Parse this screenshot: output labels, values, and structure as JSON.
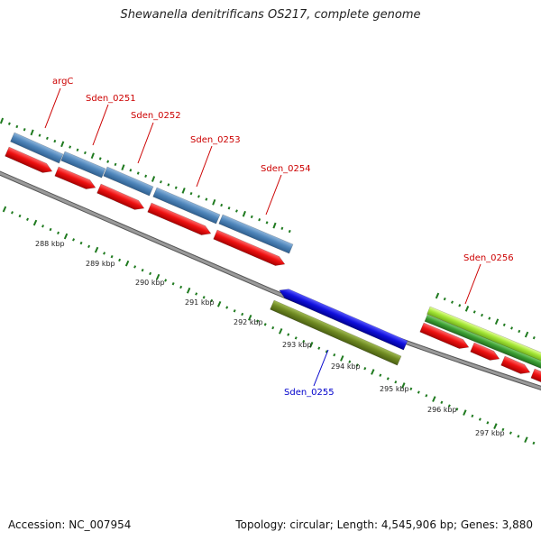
{
  "title": "Shewanella denitrificans OS217, complete genome",
  "footer": {
    "accession": "Accession: NC_007954",
    "stats": "Topology: circular; Length: 4,545,906 bp; Genes: 3,880"
  },
  "colors": {
    "backbone": "#8a8a8a",
    "gc_ticks": "#1f7a1f",
    "blue_gene": "#4f86bb",
    "red_gene": "#ee1111",
    "navy_gene": "#1010dd",
    "olive_gene": "#6f8a22",
    "lime_gene": "#a5e636",
    "dark_green_gene": "#3b9e34",
    "red_label": "#cc0000",
    "blue_label": "#0000cc"
  },
  "gene_labels": [
    {
      "name": "argC",
      "color": "red"
    },
    {
      "name": "Sden_0251",
      "color": "red"
    },
    {
      "name": "Sden_0252",
      "color": "red"
    },
    {
      "name": "Sden_0253",
      "color": "red"
    },
    {
      "name": "Sden_0254",
      "color": "red"
    },
    {
      "name": "Sden_0255",
      "color": "blue"
    },
    {
      "name": "Sden_0256",
      "color": "red"
    }
  ],
  "scale_labels": [
    "288 kbp",
    "289 kbp",
    "290 kbp",
    "291 kbp",
    "292 kbp",
    "293 kbp",
    "294 kbp",
    "295 kbp",
    "296 kbp",
    "297 kbp"
  ]
}
